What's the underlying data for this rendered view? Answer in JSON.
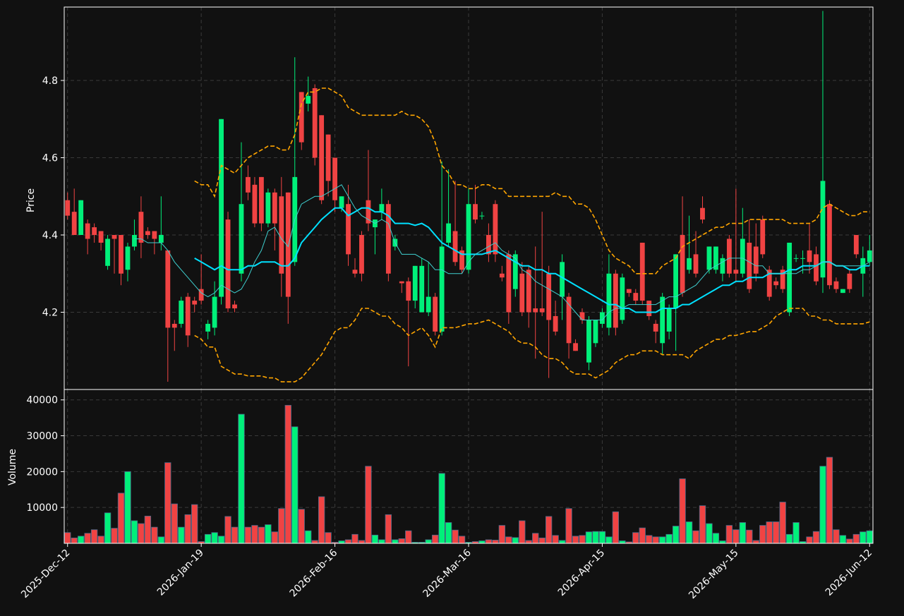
{
  "chart_data": {
    "type": "candlestick",
    "ylabel": "Price",
    "ylim": [
      4.0,
      4.99
    ],
    "yticks": [
      4.2,
      4.4,
      4.6,
      4.8
    ],
    "grid": true,
    "up_color": "#00f07a",
    "down_color": "#f04343",
    "categories": [
      "2025-Dec-12",
      null,
      null,
      null,
      null,
      null,
      null,
      null,
      null,
      null,
      null,
      null,
      null,
      null,
      null,
      null,
      null,
      null,
      null,
      null,
      "2026-Jan-19",
      null,
      null,
      null,
      null,
      null,
      null,
      null,
      null,
      null,
      null,
      null,
      null,
      null,
      null,
      null,
      null,
      null,
      null,
      null,
      "2026-Feb-16",
      null,
      null,
      null,
      null,
      null,
      null,
      null,
      null,
      null,
      null,
      null,
      null,
      null,
      null,
      null,
      null,
      null,
      null,
      null,
      "2026-Mar-16",
      null,
      null,
      null,
      null,
      null,
      null,
      null,
      null,
      null,
      null,
      null,
      null,
      null,
      null,
      null,
      null,
      null,
      null,
      null,
      "2026-Apr-15",
      null,
      null,
      null,
      null,
      null,
      null,
      null,
      null,
      null,
      null,
      null,
      null,
      null,
      null,
      null,
      null,
      null,
      null,
      null,
      "2026-May-15",
      null,
      null,
      null,
      null,
      null,
      null,
      null,
      null,
      null,
      null,
      null,
      null,
      null,
      null,
      null,
      null,
      null,
      null,
      null,
      "2026-Jun-12"
    ],
    "open": [
      4.49,
      4.46,
      4.4,
      4.43,
      4.42,
      4.41,
      4.32,
      4.4,
      4.4,
      4.31,
      4.37,
      4.46,
      4.41,
      4.41,
      4.38,
      4.36,
      4.17,
      4.17,
      4.24,
      4.23,
      4.26,
      4.15,
      4.16,
      4.24,
      4.44,
      4.22,
      4.3,
      4.55,
      4.53,
      4.55,
      4.43,
      4.51,
      4.5,
      4.51,
      4.33,
      4.77,
      4.74,
      4.78,
      4.71,
      4.66,
      4.6,
      4.47,
      4.48,
      4.31,
      4.4,
      4.49,
      4.42,
      4.46,
      4.48,
      4.37,
      4.28,
      4.28,
      4.23,
      4.2,
      4.2,
      4.24,
      4.15,
      4.38,
      4.41,
      4.36,
      4.31,
      4.48,
      4.45,
      4.4,
      4.48,
      4.3,
      4.35,
      4.26,
      4.3,
      4.31,
      4.21,
      4.21,
      4.3,
      4.19,
      4.24,
      4.24,
      4.12,
      4.2,
      4.07,
      4.12,
      4.17,
      4.16,
      4.3,
      4.18,
      4.26,
      4.25,
      4.38,
      4.23,
      4.17,
      4.12,
      4.15,
      4.21,
      4.4,
      4.31,
      4.35,
      4.47,
      4.31,
      4.31,
      4.3,
      4.39,
      4.31,
      4.3,
      4.38,
      4.37,
      4.44,
      4.31,
      4.28,
      4.31,
      4.2,
      4.34,
      4.34,
      4.36,
      4.35,
      4.29,
      4.48,
      4.28,
      4.25,
      4.3,
      4.4,
      4.3,
      4.33
    ],
    "high": [
      4.51,
      4.52,
      4.49,
      4.44,
      4.43,
      4.41,
      4.4,
      4.4,
      4.4,
      4.38,
      4.44,
      4.5,
      4.42,
      4.41,
      4.5,
      4.36,
      4.18,
      4.24,
      4.25,
      4.24,
      4.35,
      4.18,
      4.28,
      4.7,
      4.46,
      4.23,
      4.64,
      4.58,
      4.55,
      4.55,
      4.52,
      4.52,
      4.55,
      4.51,
      4.86,
      4.77,
      4.81,
      4.79,
      4.71,
      4.66,
      4.6,
      4.5,
      4.53,
      4.34,
      4.41,
      4.62,
      4.44,
      4.52,
      4.49,
      4.4,
      4.28,
      4.29,
      4.32,
      4.34,
      4.33,
      4.25,
      4.59,
      4.57,
      4.54,
      4.37,
      4.52,
      4.53,
      4.46,
      4.43,
      4.49,
      4.32,
      4.36,
      4.36,
      4.33,
      4.32,
      4.37,
      4.46,
      4.32,
      4.23,
      4.35,
      4.25,
      4.13,
      4.21,
      4.19,
      4.18,
      4.21,
      4.35,
      4.31,
      4.3,
      4.26,
      4.26,
      4.38,
      4.23,
      4.18,
      4.25,
      4.22,
      4.35,
      4.5,
      4.45,
      4.41,
      4.5,
      4.37,
      4.37,
      4.35,
      4.4,
      4.52,
      4.47,
      4.44,
      4.43,
      4.45,
      4.32,
      4.29,
      4.32,
      4.38,
      4.35,
      4.36,
      4.43,
      4.37,
      4.98,
      4.49,
      4.29,
      4.26,
      4.31,
      4.4,
      4.37,
      4.4
    ],
    "low": [
      4.44,
      4.4,
      4.4,
      4.35,
      4.38,
      4.36,
      4.31,
      4.3,
      4.27,
      4.28,
      4.36,
      4.34,
      4.39,
      4.35,
      4.36,
      4.02,
      4.1,
      4.16,
      4.11,
      4.2,
      4.22,
      4.13,
      4.14,
      4.22,
      4.2,
      4.2,
      4.28,
      4.49,
      4.42,
      4.41,
      4.42,
      4.36,
      4.24,
      4.17,
      4.32,
      4.62,
      4.72,
      4.58,
      4.48,
      4.5,
      4.46,
      4.46,
      4.32,
      4.29,
      4.28,
      4.41,
      4.35,
      4.44,
      4.28,
      4.36,
      4.25,
      4.06,
      4.21,
      4.2,
      4.19,
      4.14,
      4.14,
      4.37,
      4.32,
      4.3,
      4.3,
      4.43,
      4.44,
      4.33,
      4.33,
      4.28,
      4.17,
      4.24,
      4.19,
      4.16,
      4.08,
      4.19,
      4.03,
      4.14,
      4.18,
      4.08,
      4.1,
      4.17,
      4.05,
      4.11,
      4.16,
      4.14,
      4.14,
      4.17,
      4.24,
      4.22,
      4.22,
      4.18,
      4.12,
      4.09,
      4.13,
      4.1,
      4.24,
      4.3,
      4.29,
      4.43,
      4.3,
      4.3,
      4.28,
      4.29,
      4.28,
      4.29,
      4.25,
      4.28,
      4.34,
      4.23,
      4.26,
      4.25,
      4.19,
      4.33,
      4.3,
      4.3,
      4.27,
      4.25,
      4.26,
      4.25,
      4.25,
      4.25,
      4.34,
      4.24,
      4.32
    ],
    "close": [
      4.45,
      4.4,
      4.49,
      4.39,
      4.4,
      4.38,
      4.39,
      4.39,
      4.3,
      4.37,
      4.4,
      4.38,
      4.4,
      4.39,
      4.4,
      4.16,
      4.16,
      4.23,
      4.14,
      4.22,
      4.23,
      4.17,
      4.24,
      4.7,
      4.21,
      4.21,
      4.48,
      4.51,
      4.43,
      4.43,
      4.51,
      4.43,
      4.3,
      4.24,
      4.55,
      4.64,
      4.76,
      4.6,
      4.49,
      4.54,
      4.49,
      4.5,
      4.35,
      4.3,
      4.3,
      4.43,
      4.44,
      4.48,
      4.3,
      4.39,
      4.275,
      4.23,
      4.32,
      4.32,
      4.24,
      4.15,
      4.37,
      4.43,
      4.33,
      4.31,
      4.48,
      4.44,
      4.45,
      4.35,
      4.35,
      4.29,
      4.2,
      4.35,
      4.2,
      4.2,
      4.2,
      4.2,
      4.18,
      4.15,
      4.33,
      4.12,
      4.1,
      4.18,
      4.18,
      4.18,
      4.2,
      4.3,
      4.16,
      4.29,
      4.25,
      4.23,
      4.23,
      4.19,
      4.15,
      4.24,
      4.21,
      4.35,
      4.25,
      4.34,
      4.3,
      4.44,
      4.37,
      4.37,
      4.34,
      4.3,
      4.3,
      4.39,
      4.26,
      4.3,
      4.35,
      4.24,
      4.27,
      4.26,
      4.38,
      4.34,
      4.34,
      4.33,
      4.28,
      4.54,
      4.27,
      4.26,
      4.26,
      4.26,
      4.35,
      4.34,
      4.36
    ],
    "series": [
      {
        "color": "#00e1ff",
        "style": "solid-thick",
        "values": [
          null,
          null,
          null,
          null,
          null,
          null,
          null,
          null,
          null,
          null,
          null,
          null,
          null,
          null,
          null,
          null,
          null,
          null,
          null,
          4.34,
          4.33,
          4.32,
          4.31,
          4.32,
          4.31,
          4.31,
          4.31,
          4.32,
          4.32,
          4.33,
          4.33,
          4.33,
          4.32,
          4.32,
          4.34,
          4.38,
          4.4,
          4.42,
          4.44,
          4.455,
          4.47,
          4.47,
          4.45,
          4.46,
          4.47,
          4.47,
          4.46,
          4.46,
          4.45,
          4.43,
          4.43,
          4.43,
          4.425,
          4.43,
          4.42,
          4.4,
          4.38,
          4.37,
          4.36,
          4.35,
          4.35,
          4.35,
          4.35,
          4.355,
          4.36,
          4.35,
          4.34,
          4.33,
          4.32,
          4.32,
          4.31,
          4.31,
          4.3,
          4.3,
          4.29,
          4.28,
          4.27,
          4.26,
          4.25,
          4.24,
          4.23,
          4.22,
          4.22,
          4.21,
          4.21,
          4.2,
          4.2,
          4.2,
          4.2,
          4.21,
          4.21,
          4.21,
          4.22,
          4.22,
          4.23,
          4.24,
          4.25,
          4.26,
          4.27,
          4.27,
          4.28,
          4.28,
          4.29,
          4.29,
          4.29,
          4.3,
          4.3,
          4.3,
          4.31,
          4.31,
          4.32,
          4.32,
          4.32,
          4.33,
          4.33,
          4.32,
          4.32,
          4.31,
          4.31,
          4.32,
          4.32
        ]
      },
      {
        "color": "#3fcfcf",
        "style": "solid-thin",
        "values": [
          null,
          null,
          null,
          null,
          null,
          null,
          null,
          null,
          null,
          null,
          4.39,
          4.39,
          4.38,
          4.38,
          4.38,
          4.36,
          4.33,
          4.31,
          4.29,
          4.27,
          4.25,
          4.24,
          4.25,
          4.27,
          4.26,
          4.25,
          4.26,
          4.29,
          4.33,
          4.36,
          4.41,
          4.42,
          4.39,
          4.37,
          4.44,
          4.48,
          4.49,
          4.5,
          4.5,
          4.51,
          4.52,
          4.53,
          4.5,
          4.47,
          4.45,
          4.44,
          4.43,
          4.44,
          4.43,
          4.38,
          4.35,
          4.35,
          4.35,
          4.34,
          4.33,
          4.31,
          4.31,
          4.3,
          4.3,
          4.3,
          4.33,
          4.35,
          4.36,
          4.37,
          4.38,
          4.36,
          4.35,
          4.34,
          4.31,
          4.3,
          4.28,
          4.27,
          4.26,
          4.25,
          4.24,
          4.22,
          4.2,
          4.18,
          4.18,
          4.18,
          4.18,
          4.2,
          4.21,
          4.21,
          4.22,
          4.22,
          4.22,
          4.22,
          4.22,
          4.23,
          4.24,
          4.24,
          4.25,
          4.26,
          4.27,
          4.29,
          4.31,
          4.32,
          4.33,
          4.34,
          4.34,
          4.34,
          4.33,
          4.32,
          4.32,
          4.3,
          4.3,
          4.3,
          4.3,
          4.3,
          4.31,
          4.31,
          4.32,
          4.33,
          4.33,
          4.32,
          4.32,
          4.32,
          4.32,
          4.32,
          4.33
        ]
      },
      {
        "color": "#ffa500",
        "style": "dashed",
        "values": [
          null,
          null,
          null,
          null,
          null,
          null,
          null,
          null,
          null,
          null,
          null,
          null,
          null,
          null,
          null,
          null,
          null,
          null,
          null,
          4.54,
          4.53,
          4.53,
          4.5,
          4.58,
          4.57,
          4.56,
          4.58,
          4.6,
          4.61,
          4.62,
          4.63,
          4.63,
          4.62,
          4.62,
          4.66,
          4.74,
          4.77,
          4.77,
          4.78,
          4.78,
          4.77,
          4.76,
          4.73,
          4.72,
          4.71,
          4.71,
          4.71,
          4.71,
          4.71,
          4.71,
          4.72,
          4.71,
          4.71,
          4.7,
          4.68,
          4.64,
          4.58,
          4.56,
          4.53,
          4.53,
          4.52,
          4.52,
          4.53,
          4.53,
          4.52,
          4.52,
          4.5,
          4.5,
          4.5,
          4.5,
          4.5,
          4.5,
          4.5,
          4.51,
          4.5,
          4.5,
          4.48,
          4.48,
          4.47,
          4.44,
          4.4,
          4.36,
          4.34,
          4.33,
          4.32,
          4.3,
          4.3,
          4.3,
          4.3,
          4.32,
          4.33,
          4.34,
          4.37,
          4.38,
          4.39,
          4.4,
          4.41,
          4.42,
          4.42,
          4.43,
          4.43,
          4.43,
          4.44,
          4.44,
          4.44,
          4.44,
          4.44,
          4.44,
          4.43,
          4.43,
          4.43,
          4.43,
          4.44,
          4.47,
          4.48,
          4.47,
          4.46,
          4.45,
          4.45,
          4.46,
          4.46
        ]
      },
      {
        "color": "#ffa500",
        "style": "dashed",
        "values": [
          null,
          null,
          null,
          null,
          null,
          null,
          null,
          null,
          null,
          null,
          null,
          null,
          null,
          null,
          null,
          null,
          null,
          null,
          null,
          4.14,
          4.13,
          4.11,
          4.11,
          4.06,
          4.05,
          4.04,
          4.04,
          4.035,
          4.035,
          4.035,
          4.03,
          4.03,
          4.02,
          4.02,
          4.02,
          4.03,
          4.05,
          4.07,
          4.09,
          4.12,
          4.15,
          4.16,
          4.16,
          4.18,
          4.21,
          4.21,
          4.2,
          4.19,
          4.19,
          4.17,
          4.16,
          4.14,
          4.15,
          4.16,
          4.14,
          4.11,
          4.16,
          4.16,
          4.16,
          4.165,
          4.17,
          4.17,
          4.175,
          4.18,
          4.17,
          4.16,
          4.15,
          4.13,
          4.12,
          4.12,
          4.11,
          4.09,
          4.08,
          4.08,
          4.07,
          4.05,
          4.04,
          4.04,
          4.04,
          4.03,
          4.04,
          4.05,
          4.07,
          4.08,
          4.09,
          4.09,
          4.1,
          4.1,
          4.1,
          4.09,
          4.09,
          4.09,
          4.09,
          4.08,
          4.1,
          4.11,
          4.12,
          4.13,
          4.13,
          4.14,
          4.14,
          4.145,
          4.15,
          4.15,
          4.16,
          4.17,
          4.19,
          4.2,
          4.21,
          4.21,
          4.21,
          4.19,
          4.19,
          4.18,
          4.18,
          4.17,
          4.17,
          4.17,
          4.17,
          4.17,
          4.175
        ]
      }
    ],
    "volume": {
      "ylabel": "Volume",
      "ylim": [
        0,
        42900
      ],
      "yticks": [
        10000,
        20000,
        30000,
        40000
      ],
      "values": [
        3000,
        1500,
        2000,
        2800,
        3800,
        2000,
        8500,
        4200,
        14000,
        20000,
        6300,
        5500,
        7600,
        4500,
        1800,
        22500,
        11000,
        4500,
        8000,
        10800,
        500,
        2500,
        3000,
        2000,
        7500,
        4500,
        36000,
        4500,
        5000,
        4500,
        5200,
        3200,
        9700,
        38500,
        32500,
        9500,
        3500,
        800,
        13000,
        3000,
        300,
        700,
        1000,
        2500,
        800,
        21500,
        2300,
        1000,
        8000,
        1000,
        1300,
        3500,
        300,
        300,
        1000,
        2300,
        19500,
        5800,
        3700,
        2000,
        300,
        500,
        700,
        1000,
        900,
        5000,
        1800,
        1600,
        6300,
        800,
        2800,
        1500,
        7500,
        2200,
        800,
        9700,
        2000,
        2200,
        3200,
        3300,
        3300,
        1800,
        8800,
        700,
        400,
        3000,
        4300,
        2200,
        1800,
        1800,
        2500,
        4800,
        18000,
        6000,
        3500,
        10500,
        5500,
        2800,
        700,
        5000,
        3800,
        5800,
        3700,
        800,
        5000,
        6000,
        6000,
        11500,
        2500,
        5800,
        500,
        1800,
        3300,
        21500,
        24000,
        3800,
        2200,
        1200,
        2500,
        3200,
        3500
      ]
    }
  }
}
